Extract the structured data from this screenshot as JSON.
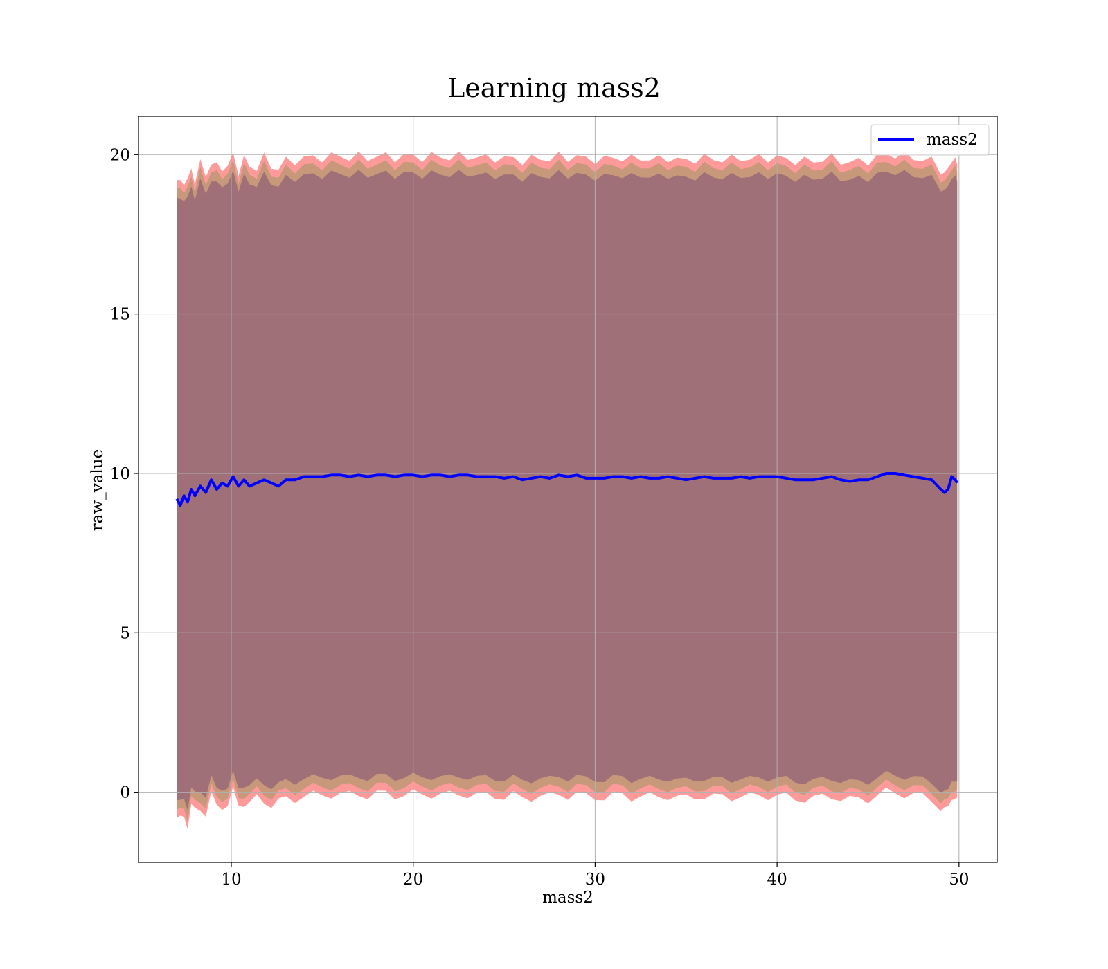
{
  "chart_data": {
    "type": "line",
    "title": "Learning mass2",
    "xlabel": "mass2",
    "ylabel": "raw_value",
    "xlim": [
      4.9,
      52.1
    ],
    "ylim": [
      -2.2,
      21.2
    ],
    "xticks": [
      10,
      20,
      30,
      40,
      50
    ],
    "yticks": [
      0,
      5,
      10,
      15,
      20
    ],
    "grid": true,
    "legend": {
      "placement": "top-right",
      "entries": [
        "mass2"
      ]
    },
    "colors": {
      "line": "#0000ff",
      "band_outer": "#ff9a9a",
      "band_mid": "#c8987a",
      "band_inner": "#a07078",
      "grid": "#b0b0b0"
    },
    "x": [
      7.0,
      7.2,
      7.4,
      7.6,
      7.8,
      8.0,
      8.3,
      8.6,
      8.9,
      9.2,
      9.5,
      9.8,
      10.1,
      10.4,
      10.7,
      11.0,
      11.4,
      11.8,
      12.2,
      12.6,
      13.0,
      13.5,
      14.0,
      14.5,
      15.0,
      15.5,
      16.0,
      16.5,
      17.0,
      17.5,
      18.0,
      18.5,
      19.0,
      19.5,
      20.0,
      20.5,
      21.0,
      21.5,
      22.0,
      22.5,
      23.0,
      23.5,
      24.0,
      24.5,
      25.0,
      25.5,
      26.0,
      26.5,
      27.0,
      27.5,
      28.0,
      28.5,
      29.0,
      29.5,
      30.0,
      30.5,
      31.0,
      31.5,
      32.0,
      32.5,
      33.0,
      33.5,
      34.0,
      34.5,
      35.0,
      35.5,
      36.0,
      36.5,
      37.0,
      37.5,
      38.0,
      38.5,
      39.0,
      39.5,
      40.0,
      40.5,
      41.0,
      41.5,
      42.0,
      42.5,
      43.0,
      43.5,
      44.0,
      44.5,
      45.0,
      45.5,
      46.0,
      46.5,
      47.0,
      47.5,
      48.0,
      48.5,
      49.0,
      49.2,
      49.4,
      49.6,
      49.8,
      49.9
    ],
    "series": [
      {
        "name": "mass2",
        "values": [
          9.2,
          9.0,
          9.3,
          9.1,
          9.5,
          9.3,
          9.6,
          9.4,
          9.8,
          9.5,
          9.7,
          9.6,
          9.9,
          9.6,
          9.8,
          9.6,
          9.7,
          9.8,
          9.7,
          9.6,
          9.8,
          9.8,
          9.9,
          9.9,
          9.9,
          9.95,
          9.95,
          9.9,
          9.95,
          9.9,
          9.95,
          9.95,
          9.9,
          9.95,
          9.95,
          9.9,
          9.95,
          9.95,
          9.9,
          9.95,
          9.95,
          9.9,
          9.9,
          9.9,
          9.85,
          9.9,
          9.8,
          9.85,
          9.9,
          9.85,
          9.95,
          9.9,
          9.95,
          9.85,
          9.85,
          9.85,
          9.9,
          9.9,
          9.85,
          9.9,
          9.85,
          9.85,
          9.9,
          9.85,
          9.8,
          9.85,
          9.9,
          9.85,
          9.85,
          9.85,
          9.9,
          9.85,
          9.9,
          9.9,
          9.9,
          9.85,
          9.8,
          9.8,
          9.8,
          9.85,
          9.9,
          9.8,
          9.75,
          9.8,
          9.8,
          9.9,
          10.0,
          10.0,
          9.95,
          9.9,
          9.85,
          9.8,
          9.5,
          9.4,
          9.5,
          9.9,
          9.8,
          9.7
        ]
      }
    ]
  }
}
